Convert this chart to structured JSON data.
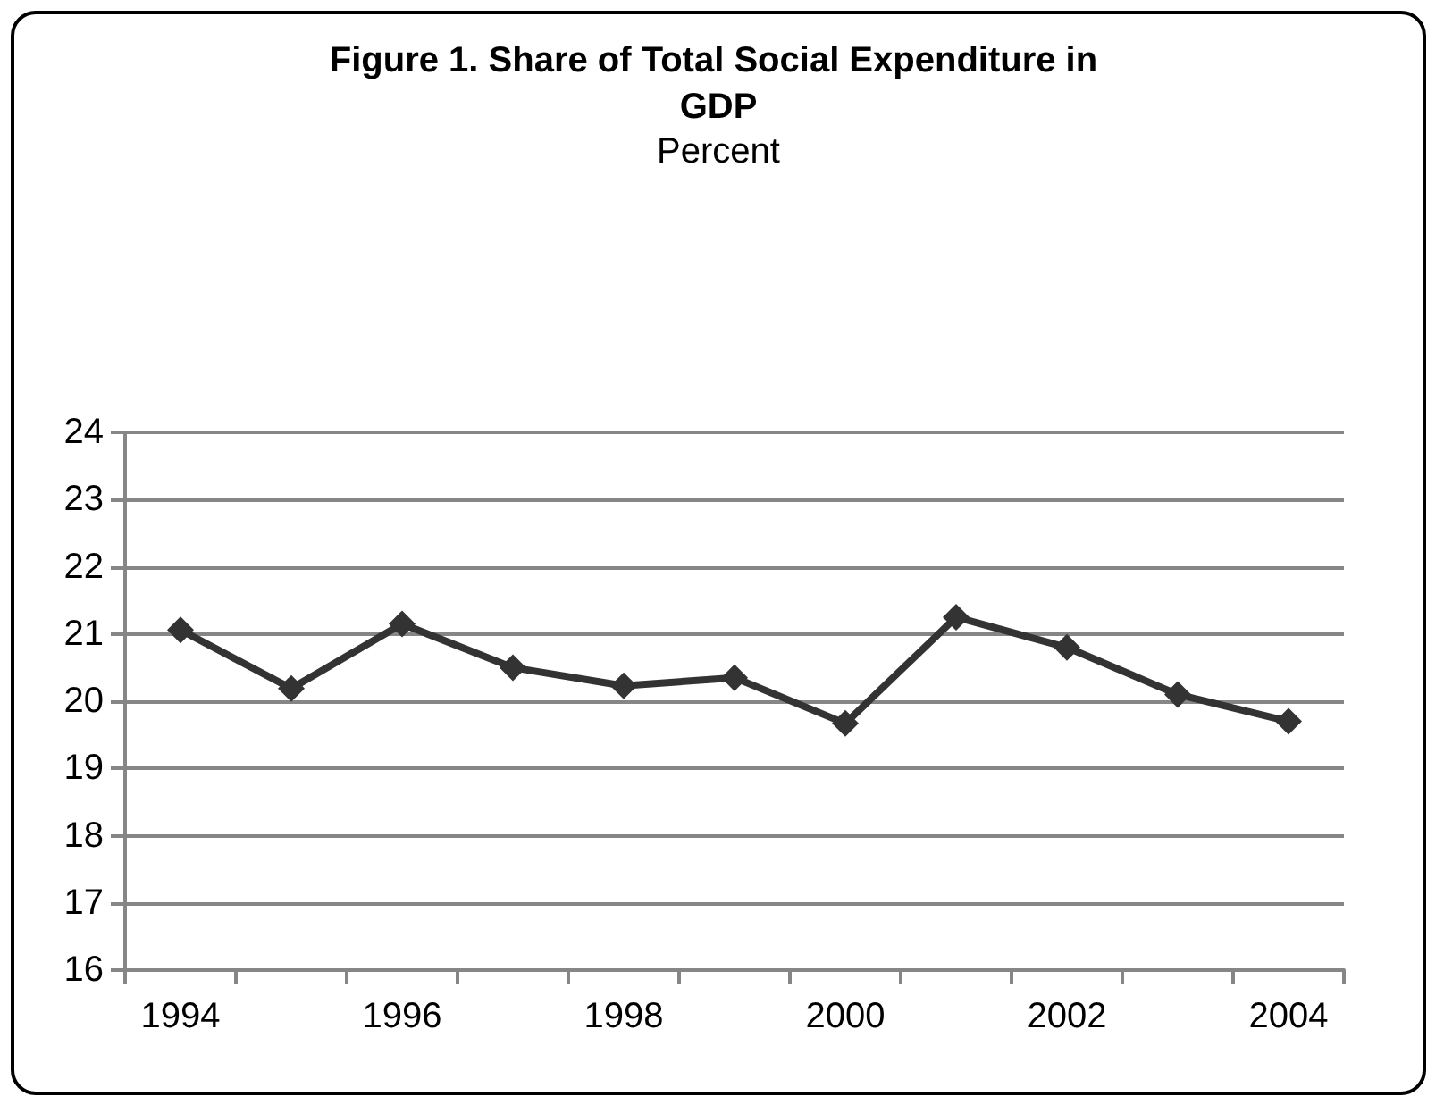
{
  "chart_data": {
    "type": "line",
    "title": "Figure 1. Share of Total Social Expenditure in GDP",
    "subtitle": "Percent",
    "categories": [
      "1994",
      null,
      "1996",
      null,
      "1998",
      null,
      "2000",
      null,
      "2002",
      null,
      "2004"
    ],
    "series": [
      {
        "color": "#333333",
        "values": [
          21.06,
          20.19,
          21.15,
          20.5,
          20.23,
          20.35,
          19.67,
          21.25,
          20.8,
          20.1,
          19.7
        ]
      }
    ],
    "ylim": [
      16,
      24
    ],
    "yticks": [
      16,
      17,
      18,
      19,
      20,
      21,
      22,
      23,
      24
    ],
    "grid": "y",
    "marker": "diamond",
    "line_style": "solid"
  }
}
